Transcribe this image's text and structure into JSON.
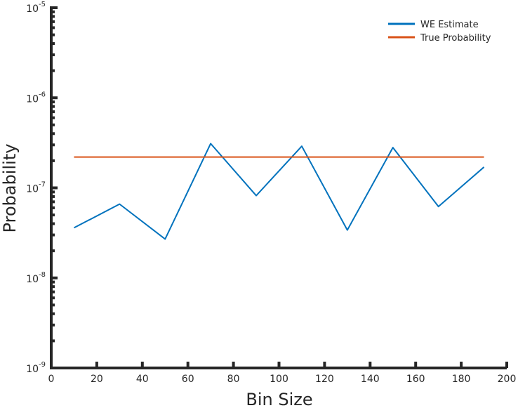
{
  "chart_data": {
    "type": "line",
    "title": "",
    "xlabel": "Bin Size",
    "ylabel": "Probability",
    "xlim": [
      0,
      200
    ],
    "ylim": [
      1e-09,
      1e-05
    ],
    "yscale": "log",
    "grid": false,
    "legend_position": "top-right",
    "x_ticks": [
      0,
      20,
      40,
      60,
      80,
      100,
      120,
      140,
      160,
      180,
      200
    ],
    "y_ticks": [
      {
        "value": 1e-09,
        "base": "10",
        "exp": "-9"
      },
      {
        "value": 1e-08,
        "base": "10",
        "exp": "-8"
      },
      {
        "value": 1e-07,
        "base": "10",
        "exp": "-7"
      },
      {
        "value": 1e-06,
        "base": "10",
        "exp": "-6"
      },
      {
        "value": 1e-05,
        "base": "10",
        "exp": "-5"
      }
    ],
    "series": [
      {
        "name": "WE Estimate",
        "color": "#0072BD",
        "x": [
          10,
          30,
          50,
          70,
          90,
          110,
          130,
          150,
          170,
          190
        ],
        "y": [
          3.6e-08,
          6.6e-08,
          2.7e-08,
          3.1e-07,
          8.2e-08,
          2.9e-07,
          3.4e-08,
          2.8e-07,
          6.2e-08,
          1.7e-07
        ]
      },
      {
        "name": "True Probability",
        "color": "#D95319",
        "x": [
          10,
          190
        ],
        "y": [
          2.2e-07,
          2.2e-07
        ]
      }
    ]
  }
}
